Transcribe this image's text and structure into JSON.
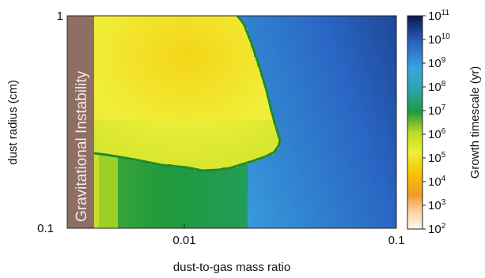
{
  "chart_data": {
    "type": "heatmap",
    "title": "",
    "xlabel": "dust-to-gas mass ratio",
    "ylabel": "dust radius (cm)",
    "x_scale": "log",
    "y_scale": "log",
    "xlim": [
      0.0025,
      0.1
    ],
    "ylim": [
      0.1,
      1
    ],
    "x_ticks": [
      {
        "value": 0.01,
        "label": "0.01"
      },
      {
        "value": 0.1,
        "label": "0.1"
      }
    ],
    "y_ticks": [
      {
        "value": 0.1,
        "label": "0.1"
      },
      {
        "value": 1,
        "label": "1"
      }
    ],
    "colorbar": {
      "label": "Growth timescale (yr)",
      "scale": "log",
      "range": [
        100,
        100000000000
      ],
      "tick_base": "10",
      "tick_exponents": [
        "2",
        "3",
        "4",
        "5",
        "6",
        "7",
        "8",
        "9",
        "10",
        "11"
      ]
    },
    "annotations": [
      {
        "text": "Gravitational Instability",
        "region": "dust-to-gas mass ratio below ~0.0035"
      }
    ],
    "colors": {
      "instability_band": "#8f6f63",
      "fast_growth": "#f2b300",
      "intermediate": "#2a9a3a",
      "slow_growth": "#0c2f7a"
    }
  }
}
